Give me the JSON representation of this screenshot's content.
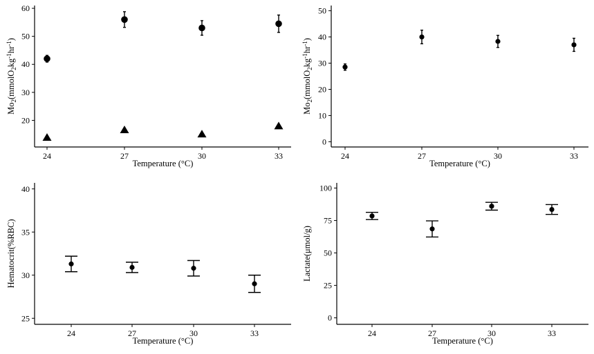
{
  "chart_data": [
    {
      "type": "scatter",
      "id": "top-left",
      "title": "",
      "xlabel": "Temperature (°C)",
      "ylabel_main": "Mo",
      "ylabel_sub": "2",
      "ylabel_rest": "(mmolO",
      "ylabel_sub2": "2",
      "ylabel_tail": "kg",
      "ylabel_sup1": "-1",
      "ylabel_hr": "hr",
      "ylabel_sup2": "-1",
      "ylabel_close": ")",
      "categories": [
        "24",
        "27",
        "30",
        "33"
      ],
      "ylim": [
        10.5,
        61
      ],
      "yticks": [
        20,
        30,
        40,
        50,
        60
      ],
      "series": [
        {
          "marker": "circle",
          "values": [
            42.0,
            56.0,
            53.0,
            54.5
          ],
          "err": [
            1.2,
            2.8,
            2.6,
            3.1
          ],
          "cap": "narrow"
        },
        {
          "marker": "triangle",
          "values": [
            13.8,
            16.5,
            15.0,
            17.9
          ],
          "err": [
            0,
            0,
            0,
            0
          ],
          "cap": "none"
        }
      ]
    },
    {
      "type": "scatter",
      "id": "top-right",
      "title": "",
      "xlabel": "Temperature (°C)",
      "ylabel_main": "Mo",
      "ylabel_sub": "2",
      "ylabel_rest": "(mmolO",
      "ylabel_sub2": "2",
      "ylabel_tail": "kg",
      "ylabel_sup1": "-1",
      "ylabel_hr": "hr",
      "ylabel_sup2": "-1",
      "ylabel_close": ")",
      "categories": [
        "24",
        "27",
        "30",
        "33"
      ],
      "ylim": [
        -2,
        52
      ],
      "yticks": [
        0,
        10,
        20,
        30,
        40,
        50
      ],
      "series": [
        {
          "marker": "circle-small",
          "values": [
            28.5,
            40.0,
            38.3,
            37.0
          ],
          "err": [
            1.2,
            2.6,
            2.3,
            2.5
          ],
          "cap": "narrow"
        }
      ]
    },
    {
      "type": "scatter",
      "id": "bottom-left",
      "title": "",
      "xlabel": "Temperature (°C)",
      "ylabel_main": "Hematocrit(%RBC)",
      "categories": [
        "24",
        "27",
        "30",
        "33"
      ],
      "ylim": [
        24.3,
        40.7
      ],
      "yticks": [
        25,
        30,
        35,
        40
      ],
      "series": [
        {
          "marker": "circle-small",
          "values": [
            31.3,
            30.9,
            30.8,
            29.0
          ],
          "err": [
            0.9,
            0.6,
            0.9,
            1.0
          ],
          "cap": "wide"
        }
      ]
    },
    {
      "type": "scatter",
      "id": "bottom-right",
      "title": "",
      "xlabel": "Temperature (°C)",
      "ylabel_main": "Lactate(μmol/g)",
      "categories": [
        "24",
        "27",
        "30",
        "33"
      ],
      "ylim": [
        -5,
        104
      ],
      "yticks": [
        0,
        25,
        50,
        75,
        100
      ],
      "series": [
        {
          "marker": "circle-small",
          "values": [
            78.5,
            68.5,
            86.0,
            83.5
          ],
          "err": [
            2.8,
            6.2,
            3.0,
            3.8
          ],
          "cap": "wide"
        }
      ]
    }
  ]
}
